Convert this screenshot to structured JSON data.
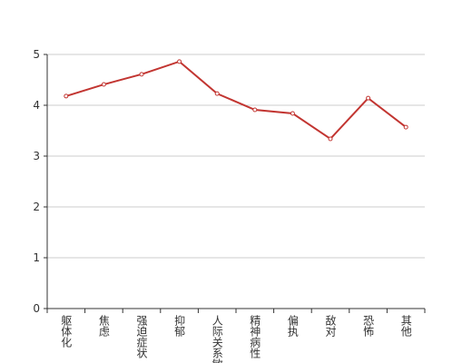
{
  "chart_data": {
    "type": "line",
    "categories": [
      "躯体化",
      "焦虑",
      "强迫症状",
      "抑郁",
      "人际关系敏感",
      "精神病性",
      "偏执",
      "敌对",
      "恐怖",
      "其他"
    ],
    "values": [
      4.18,
      4.41,
      4.61,
      4.86,
      4.23,
      3.91,
      3.84,
      3.34,
      4.14,
      3.57
    ],
    "color": "#c23531",
    "ylim": [
      0,
      5
    ],
    "yticks": [
      0,
      1,
      2,
      3,
      4,
      5
    ],
    "grid": true
  }
}
